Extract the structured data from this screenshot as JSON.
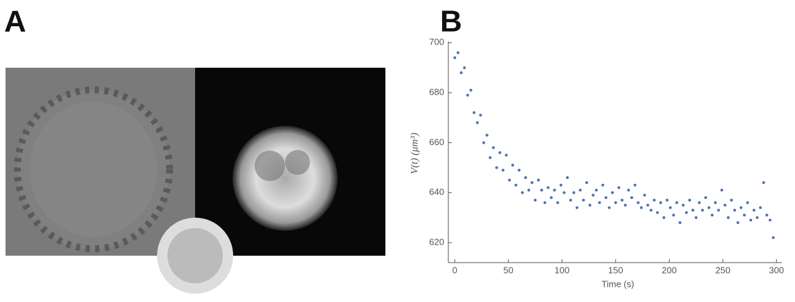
{
  "panels": {
    "a": "A",
    "b": "B"
  },
  "chart_data": {
    "type": "scatter",
    "x_label": "Time (s)",
    "y_label": "V(t) (μm³)",
    "color": "#4a72b0",
    "xlim": [
      -6,
      305
    ],
    "ylim": [
      612,
      700.5
    ],
    "xticks": [
      0,
      50,
      100,
      150,
      200,
      250,
      300
    ],
    "yticks": [
      620,
      640,
      660,
      680,
      700
    ],
    "x": [
      0,
      3,
      6,
      9,
      12,
      15,
      18,
      21,
      24,
      27,
      30,
      33,
      36,
      39,
      42,
      45,
      48,
      51,
      54,
      57,
      60,
      63,
      66,
      69,
      72,
      75,
      78,
      81,
      84,
      87,
      90,
      93,
      96,
      99,
      102,
      105,
      108,
      111,
      114,
      117,
      120,
      123,
      126,
      129,
      132,
      135,
      138,
      141,
      144,
      147,
      150,
      153,
      156,
      159,
      162,
      165,
      168,
      171,
      174,
      177,
      180,
      183,
      186,
      189,
      192,
      195,
      198,
      201,
      204,
      207,
      210,
      213,
      216,
      219,
      222,
      225,
      228,
      231,
      234,
      237,
      240,
      243,
      246,
      249,
      252,
      255,
      258,
      261,
      264,
      267,
      270,
      273,
      276,
      279,
      282,
      285,
      288,
      291,
      294,
      297
    ],
    "y": [
      694,
      696,
      688,
      690,
      679,
      681,
      672,
      668,
      671,
      660,
      663,
      654,
      658,
      650,
      656,
      649,
      655,
      645,
      651,
      643,
      649,
      640,
      646,
      641,
      644,
      637,
      645,
      641,
      636,
      642,
      638,
      641,
      636,
      643,
      640,
      646,
      637,
      640,
      634,
      641,
      637,
      644,
      635,
      639,
      641,
      636,
      643,
      638,
      634,
      640,
      636,
      642,
      637,
      635,
      641,
      638,
      643,
      636,
      634,
      639,
      635,
      633,
      637,
      632,
      636,
      630,
      637,
      634,
      631,
      636,
      628,
      635,
      632,
      637,
      633,
      630,
      636,
      633,
      638,
      634,
      631,
      636,
      633,
      641,
      635,
      630,
      637,
      633,
      628,
      634,
      631,
      636,
      629,
      633,
      630,
      634,
      644,
      631,
      629,
      622
    ]
  }
}
